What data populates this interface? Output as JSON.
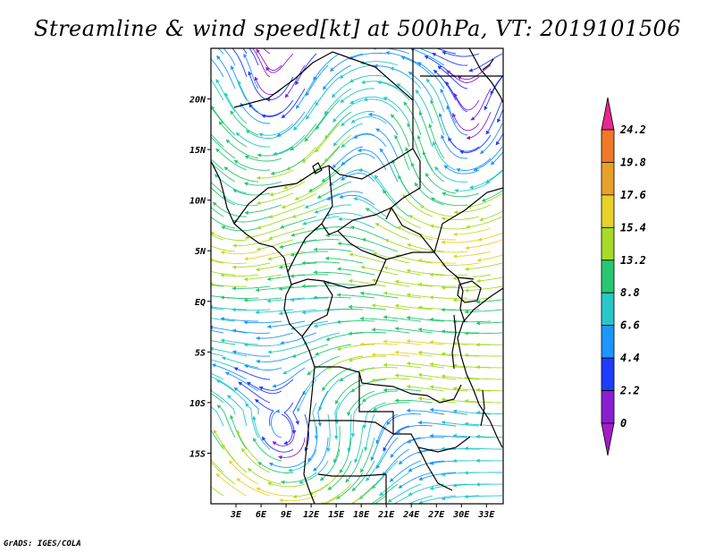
{
  "title": "Streamline & wind speed[kt] at 500hPa, VT: 2019101506",
  "footer": "GrADS: IGES/COLA",
  "map": {
    "lon_range": [
      0,
      35
    ],
    "lat_range": [
      -20,
      25
    ],
    "lon_ticks": [
      "3E",
      "6E",
      "9E",
      "12E",
      "15E",
      "18E",
      "21E",
      "24E",
      "27E",
      "30E",
      "33E"
    ],
    "lon_tick_values": [
      3,
      6,
      9,
      12,
      15,
      18,
      21,
      24,
      27,
      30,
      33
    ],
    "lat_ticks": [
      "20N",
      "15N",
      "10N",
      "5N",
      "EQ",
      "5S",
      "10S",
      "15S"
    ],
    "lat_tick_values": [
      20,
      15,
      10,
      5,
      0,
      -5,
      -10,
      -15
    ]
  },
  "colorbar": {
    "labels": [
      "24.2",
      "19.8",
      "17.6",
      "15.4",
      "13.2",
      "8.8",
      "6.6",
      "4.4",
      "2.2",
      "0"
    ],
    "colors": [
      "#e8288c",
      "#f07828",
      "#e8a028",
      "#e8d228",
      "#a6dc28",
      "#28c870",
      "#28c8c8",
      "#1e96ff",
      "#1e3cff",
      "#8c1ed2",
      "#a01ec8"
    ]
  }
}
